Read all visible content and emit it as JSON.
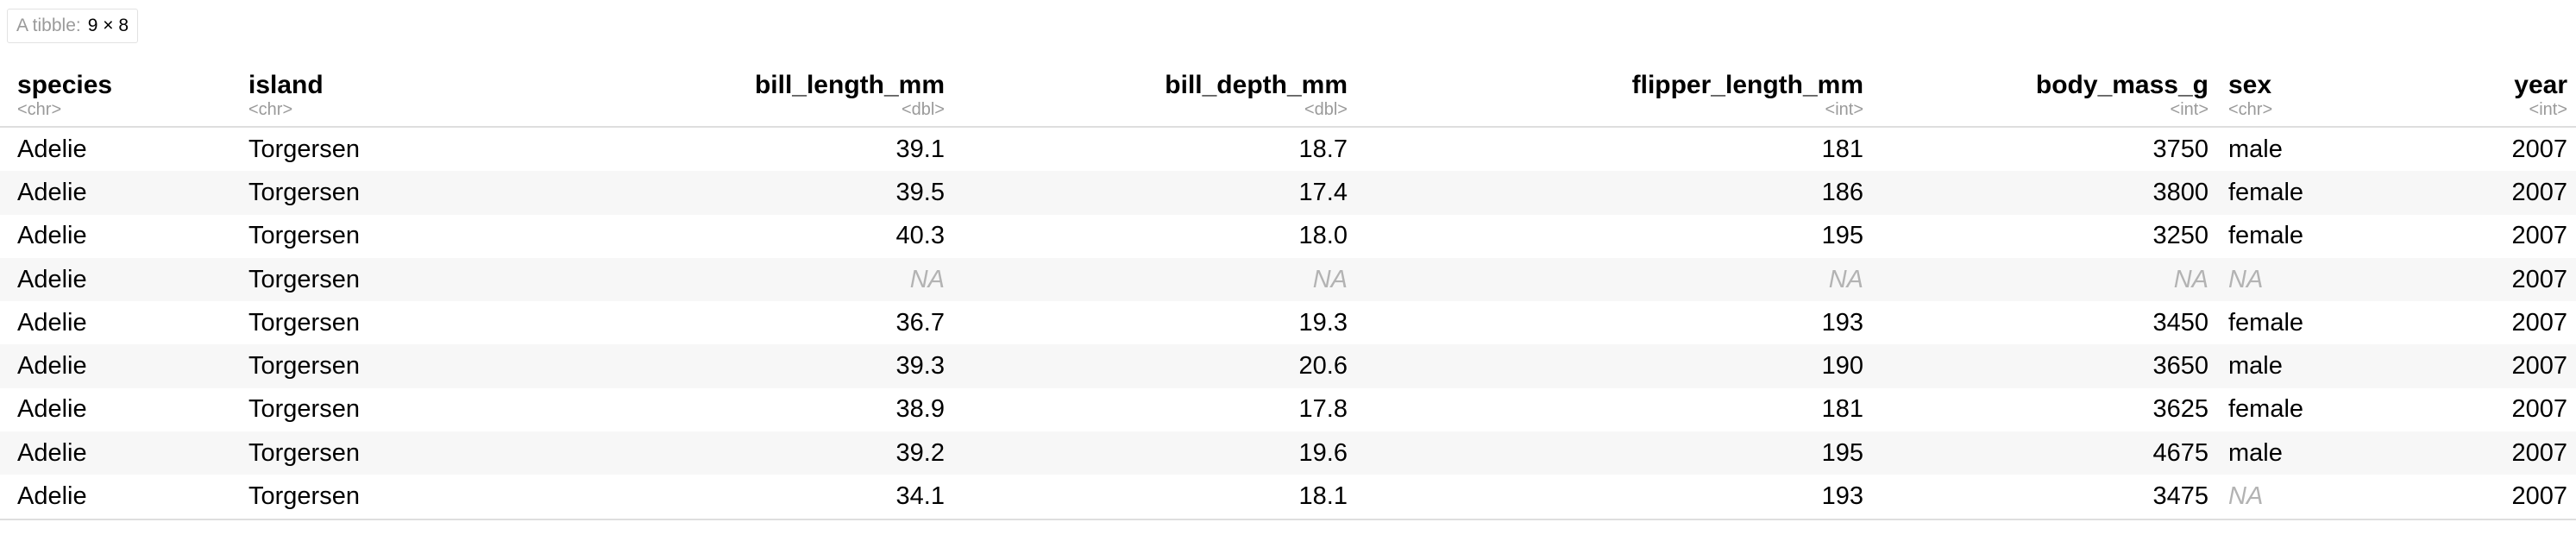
{
  "caption": {
    "label": "A tibble:",
    "dims": "9 × 8"
  },
  "columns": [
    {
      "key": "species",
      "name": "species",
      "type": "<chr>",
      "align": "left"
    },
    {
      "key": "island",
      "name": "island",
      "type": "<chr>",
      "align": "left"
    },
    {
      "key": "bill_length_mm",
      "name": "bill_length_mm",
      "type": "<dbl>",
      "align": "right"
    },
    {
      "key": "bill_depth_mm",
      "name": "bill_depth_mm",
      "type": "<dbl>",
      "align": "right"
    },
    {
      "key": "flipper_length_mm",
      "name": "flipper_length_mm",
      "type": "<int>",
      "align": "right"
    },
    {
      "key": "body_mass_g",
      "name": "body_mass_g",
      "type": "<int>",
      "align": "right"
    },
    {
      "key": "sex",
      "name": "sex",
      "type": "<chr>",
      "align": "left"
    },
    {
      "key": "year",
      "name": "year",
      "type": "<int>",
      "align": "right"
    }
  ],
  "rows": [
    [
      "Adelie",
      "Torgersen",
      "39.1",
      "18.7",
      "181",
      "3750",
      "male",
      "2007"
    ],
    [
      "Adelie",
      "Torgersen",
      "39.5",
      "17.4",
      "186",
      "3800",
      "female",
      "2007"
    ],
    [
      "Adelie",
      "Torgersen",
      "40.3",
      "18.0",
      "195",
      "3250",
      "female",
      "2007"
    ],
    [
      "Adelie",
      "Torgersen",
      "NA",
      "NA",
      "NA",
      "NA",
      "NA",
      "2007"
    ],
    [
      "Adelie",
      "Torgersen",
      "36.7",
      "19.3",
      "193",
      "3450",
      "female",
      "2007"
    ],
    [
      "Adelie",
      "Torgersen",
      "39.3",
      "20.6",
      "190",
      "3650",
      "male",
      "2007"
    ],
    [
      "Adelie",
      "Torgersen",
      "38.9",
      "17.8",
      "181",
      "3625",
      "female",
      "2007"
    ],
    [
      "Adelie",
      "Torgersen",
      "39.2",
      "19.6",
      "195",
      "4675",
      "male",
      "2007"
    ],
    [
      "Adelie",
      "Torgersen",
      "34.1",
      "18.1",
      "193",
      "3475",
      "NA",
      "2007"
    ]
  ],
  "colors": {
    "na_text": "#b3b3b3",
    "type_text": "#9a9a9a",
    "stripe": "#f7f7f7",
    "rule": "#dedede"
  }
}
